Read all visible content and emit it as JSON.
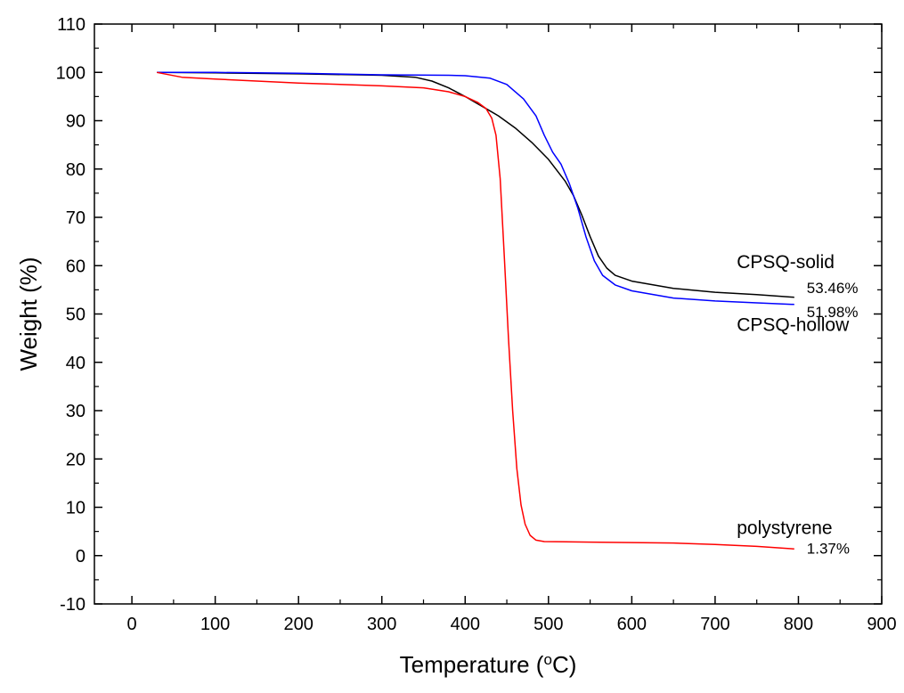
{
  "chart_data": {
    "type": "line",
    "title": "",
    "xlabel": {
      "prefix": "Temperature (",
      "sup": "o",
      "suffix": "C)"
    },
    "ylabel": "Weight (%)",
    "xlim": [
      -45,
      900
    ],
    "ylim": [
      -10,
      110
    ],
    "xticks": [
      0,
      100,
      200,
      300,
      400,
      500,
      600,
      700,
      800,
      900
    ],
    "yticks": [
      -10,
      0,
      10,
      20,
      30,
      40,
      50,
      60,
      70,
      80,
      90,
      100,
      110
    ],
    "grid": false,
    "series": [
      {
        "name": "CPSQ-solid",
        "color": "#000000",
        "points": [
          [
            30,
            100
          ],
          [
            100,
            99.9
          ],
          [
            200,
            99.7
          ],
          [
            300,
            99.4
          ],
          [
            340,
            99.0
          ],
          [
            360,
            98.2
          ],
          [
            380,
            96.8
          ],
          [
            400,
            95.0
          ],
          [
            420,
            93.0
          ],
          [
            440,
            91.0
          ],
          [
            460,
            88.5
          ],
          [
            480,
            85.5
          ],
          [
            500,
            82.0
          ],
          [
            520,
            77.5
          ],
          [
            530,
            74.5
          ],
          [
            540,
            70.5
          ],
          [
            550,
            66.0
          ],
          [
            560,
            62.0
          ],
          [
            570,
            59.5
          ],
          [
            580,
            58.0
          ],
          [
            600,
            56.8
          ],
          [
            650,
            55.3
          ],
          [
            700,
            54.5
          ],
          [
            750,
            54.0
          ],
          [
            795,
            53.46
          ]
        ]
      },
      {
        "name": "CPSQ-hollow",
        "color": "#0000ff",
        "points": [
          [
            30,
            100
          ],
          [
            100,
            100
          ],
          [
            200,
            99.8
          ],
          [
            300,
            99.5
          ],
          [
            380,
            99.4
          ],
          [
            400,
            99.3
          ],
          [
            430,
            98.8
          ],
          [
            450,
            97.5
          ],
          [
            470,
            94.5
          ],
          [
            485,
            91.0
          ],
          [
            495,
            87.0
          ],
          [
            505,
            83.5
          ],
          [
            515,
            81.0
          ],
          [
            525,
            77.0
          ],
          [
            535,
            72.0
          ],
          [
            545,
            66.0
          ],
          [
            555,
            61.0
          ],
          [
            565,
            58.0
          ],
          [
            580,
            56.0
          ],
          [
            600,
            54.8
          ],
          [
            650,
            53.3
          ],
          [
            700,
            52.7
          ],
          [
            750,
            52.3
          ],
          [
            795,
            51.98
          ]
        ]
      },
      {
        "name": "polystyrene",
        "color": "#ff0000",
        "points": [
          [
            30,
            100
          ],
          [
            60,
            99
          ],
          [
            100,
            98.6
          ],
          [
            200,
            97.8
          ],
          [
            300,
            97.2
          ],
          [
            350,
            96.8
          ],
          [
            380,
            96.0
          ],
          [
            400,
            95.0
          ],
          [
            415,
            93.8
          ],
          [
            425,
            92.5
          ],
          [
            432,
            90.5
          ],
          [
            437,
            87.0
          ],
          [
            442,
            78.0
          ],
          [
            447,
            62.0
          ],
          [
            452,
            45.0
          ],
          [
            457,
            30.0
          ],
          [
            462,
            18.0
          ],
          [
            467,
            10.5
          ],
          [
            472,
            6.5
          ],
          [
            478,
            4.2
          ],
          [
            485,
            3.2
          ],
          [
            495,
            2.9
          ],
          [
            550,
            2.8
          ],
          [
            650,
            2.6
          ],
          [
            700,
            2.3
          ],
          [
            750,
            1.9
          ],
          [
            795,
            1.37
          ]
        ]
      }
    ],
    "annotations": [
      {
        "text": "CPSQ-solid",
        "x": 726,
        "y": 59.5,
        "cls": "annot"
      },
      {
        "text": "CPSQ-hollow",
        "x": 726,
        "y": 46.5,
        "cls": "annot"
      },
      {
        "text": "polystyrene",
        "x": 726,
        "y": 4.5,
        "cls": "annot"
      },
      {
        "text": "53.46%",
        "x": 810,
        "y": 54.3,
        "cls": "end-label"
      },
      {
        "text": "51.98%",
        "x": 810,
        "y": 49.4,
        "cls": "end-label"
      },
      {
        "text": "1.37%",
        "x": 810,
        "y": 0.4,
        "cls": "end-label"
      }
    ]
  }
}
